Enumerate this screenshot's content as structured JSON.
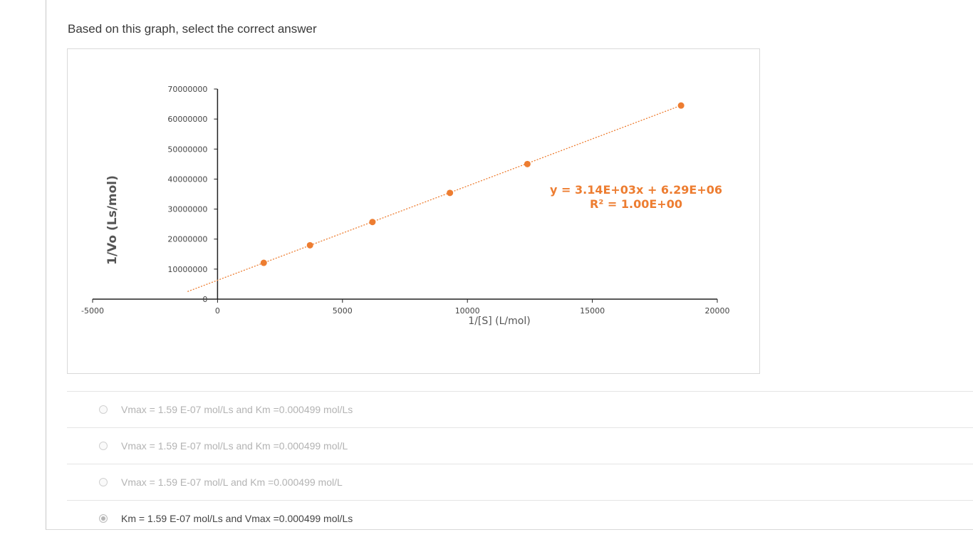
{
  "question": {
    "prompt": "Based on this graph, select the correct answer"
  },
  "chart_data": {
    "type": "scatter",
    "title": "",
    "xlabel": "1/[S] (L/mol)",
    "ylabel": "1/Vo (Ls/mol)",
    "xlim": [
      -5000,
      20000
    ],
    "ylim": [
      0,
      70000000
    ],
    "x_ticks": [
      -5000,
      0,
      5000,
      10000,
      15000,
      20000
    ],
    "x_tick_labels": [
      "-5000",
      "0",
      "5000",
      "10000",
      "15000",
      "20000"
    ],
    "y_ticks": [
      0,
      10000000,
      20000000,
      30000000,
      40000000,
      50000000,
      60000000,
      70000000
    ],
    "y_tick_labels": [
      "0",
      "10000000",
      "20000000",
      "30000000",
      "40000000",
      "50000000",
      "60000000",
      "70000000"
    ],
    "series": [
      {
        "values": [
          {
            "x": 1850,
            "y": 12100000
          },
          {
            "x": 3700,
            "y": 17950000
          },
          {
            "x": 6200,
            "y": 25700000
          },
          {
            "x": 9300,
            "y": 35400000
          },
          {
            "x": 12400,
            "y": 45000000
          },
          {
            "x": 18550,
            "y": 64500000
          }
        ],
        "color": "#ED7D31"
      }
    ],
    "trendline": {
      "style": "dotted",
      "slope": 3140,
      "intercept": 6290000,
      "x_range": [
        -1200,
        18550
      ],
      "equation": "y = 3.14E+03x + 6.29E+06",
      "r_squared": "R² = 1.00E+00",
      "color": "#ED7D31"
    },
    "grid": false,
    "legend": "none"
  },
  "options": [
    {
      "label": "Vmax = 1.59 E-07 mol/Ls and Km =0.000499 mol/Ls",
      "selected": false
    },
    {
      "label": "Vmax = 1.59 E-07 mol/Ls and Km =0.000499 mol/L",
      "selected": false
    },
    {
      "label": "Vmax = 1.59 E-07 mol/L and Km =0.000499 mol/L",
      "selected": false
    },
    {
      "label": "Km = 1.59 E-07 mol/Ls and Vmax =0.000499 mol/Ls",
      "selected": true
    }
  ]
}
